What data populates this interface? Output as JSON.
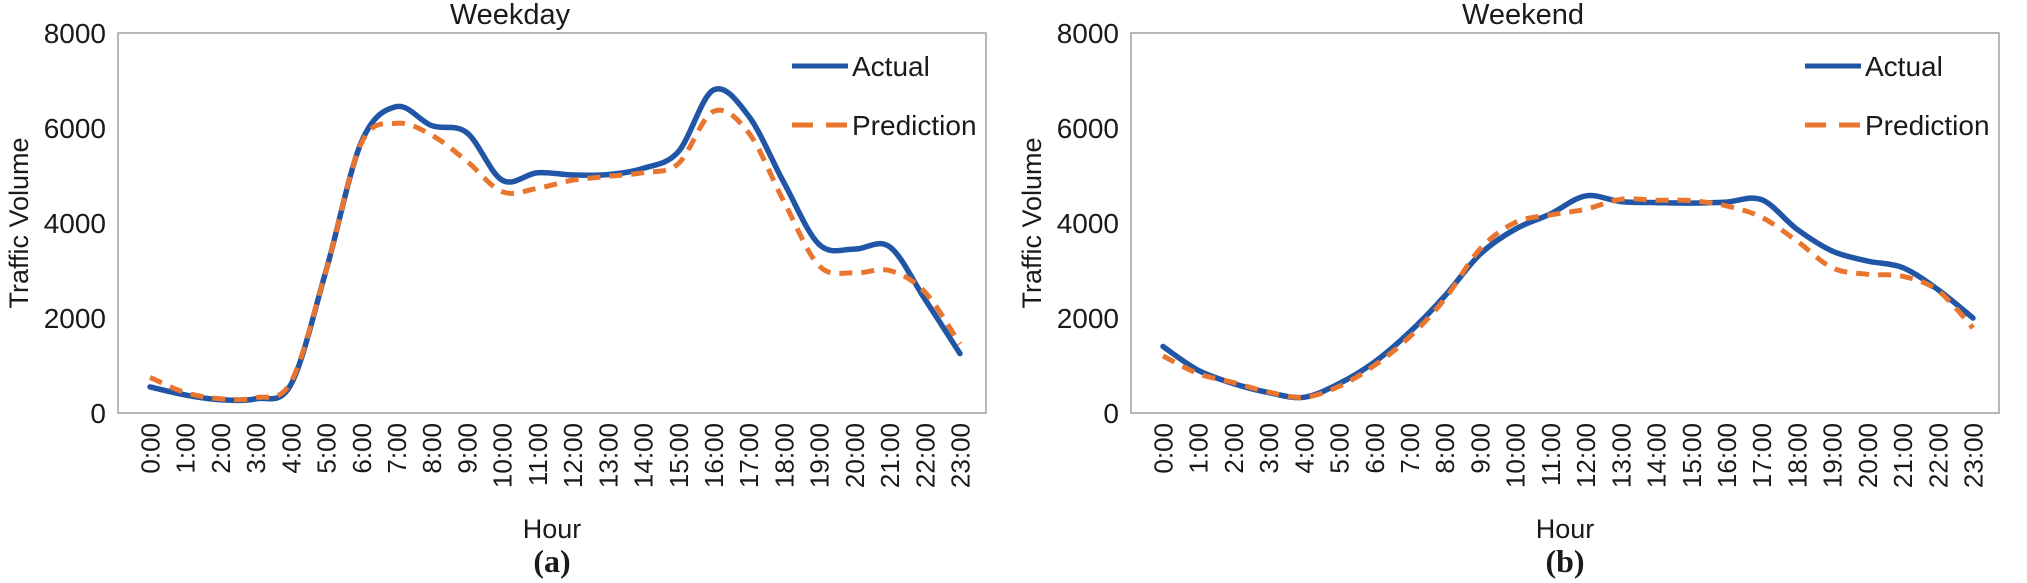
{
  "figure": {
    "background": "#ffffff",
    "text_color": "#1a1a1a",
    "axis_color": "#a6a6a6"
  },
  "chart_data": [
    {
      "type": "line",
      "title": "Weekday",
      "caption": "(a)",
      "xlabel": "Hour",
      "ylabel": "Traffic Volume",
      "ylim": [
        0,
        8000
      ],
      "yticks": [
        "0",
        "2000",
        "4000",
        "6000",
        "8000"
      ],
      "grid": false,
      "legend_position": "top-right-inside",
      "legend": [
        "Actual",
        "Prediction"
      ],
      "categories": [
        "0:00",
        "1:00",
        "2:00",
        "3:00",
        "4:00",
        "5:00",
        "6:00",
        "7:00",
        "8:00",
        "9:00",
        "10:00",
        "11:00",
        "12:00",
        "13:00",
        "14:00",
        "15:00",
        "16:00",
        "17:00",
        "18:00",
        "19:00",
        "20:00",
        "21:00",
        "22:00",
        "23:00"
      ],
      "series": [
        {
          "name": "Actual",
          "style": "solid",
          "color": "#2156A6",
          "values": [
            550,
            380,
            280,
            300,
            600,
            3000,
            5700,
            6450,
            6050,
            5900,
            4900,
            5060,
            5010,
            5020,
            5150,
            5500,
            6800,
            6250,
            4850,
            3550,
            3450,
            3500,
            2400,
            1250
          ]
        },
        {
          "name": "Prediction",
          "style": "dashed",
          "color": "#E9752E",
          "values": [
            750,
            430,
            300,
            320,
            650,
            3000,
            5680,
            6100,
            5850,
            5300,
            4660,
            4730,
            4900,
            4980,
            5060,
            5250,
            6350,
            5900,
            4450,
            3100,
            2950,
            3000,
            2550,
            1450
          ]
        }
      ]
    },
    {
      "type": "line",
      "title": "Weekend",
      "caption": "(b)",
      "xlabel": "Hour",
      "ylabel": "Traffic Volume",
      "ylim": [
        0,
        8000
      ],
      "yticks": [
        "0",
        "2000",
        "4000",
        "6000",
        "8000"
      ],
      "grid": false,
      "legend_position": "top-right-inside",
      "legend": [
        "Actual",
        "Prediction"
      ],
      "categories": [
        "0:00",
        "1:00",
        "2:00",
        "3:00",
        "4:00",
        "5:00",
        "6:00",
        "7:00",
        "8:00",
        "9:00",
        "10:00",
        "11:00",
        "12:00",
        "13:00",
        "14:00",
        "15:00",
        "16:00",
        "17:00",
        "18:00",
        "19:00",
        "20:00",
        "21:00",
        "22:00",
        "23:00"
      ],
      "series": [
        {
          "name": "Actual",
          "style": "solid",
          "color": "#2156A6",
          "values": [
            1400,
            900,
            620,
            430,
            330,
            620,
            1070,
            1700,
            2460,
            3340,
            3870,
            4190,
            4570,
            4450,
            4430,
            4420,
            4440,
            4490,
            3870,
            3410,
            3200,
            3060,
            2600,
            2000
          ]
        },
        {
          "name": "Prediction",
          "style": "dashed",
          "color": "#E9752E",
          "values": [
            1200,
            830,
            640,
            440,
            330,
            560,
            1000,
            1600,
            2400,
            3450,
            4010,
            4170,
            4290,
            4500,
            4480,
            4470,
            4360,
            4120,
            3620,
            3060,
            2920,
            2880,
            2580,
            1790
          ]
        }
      ]
    }
  ]
}
